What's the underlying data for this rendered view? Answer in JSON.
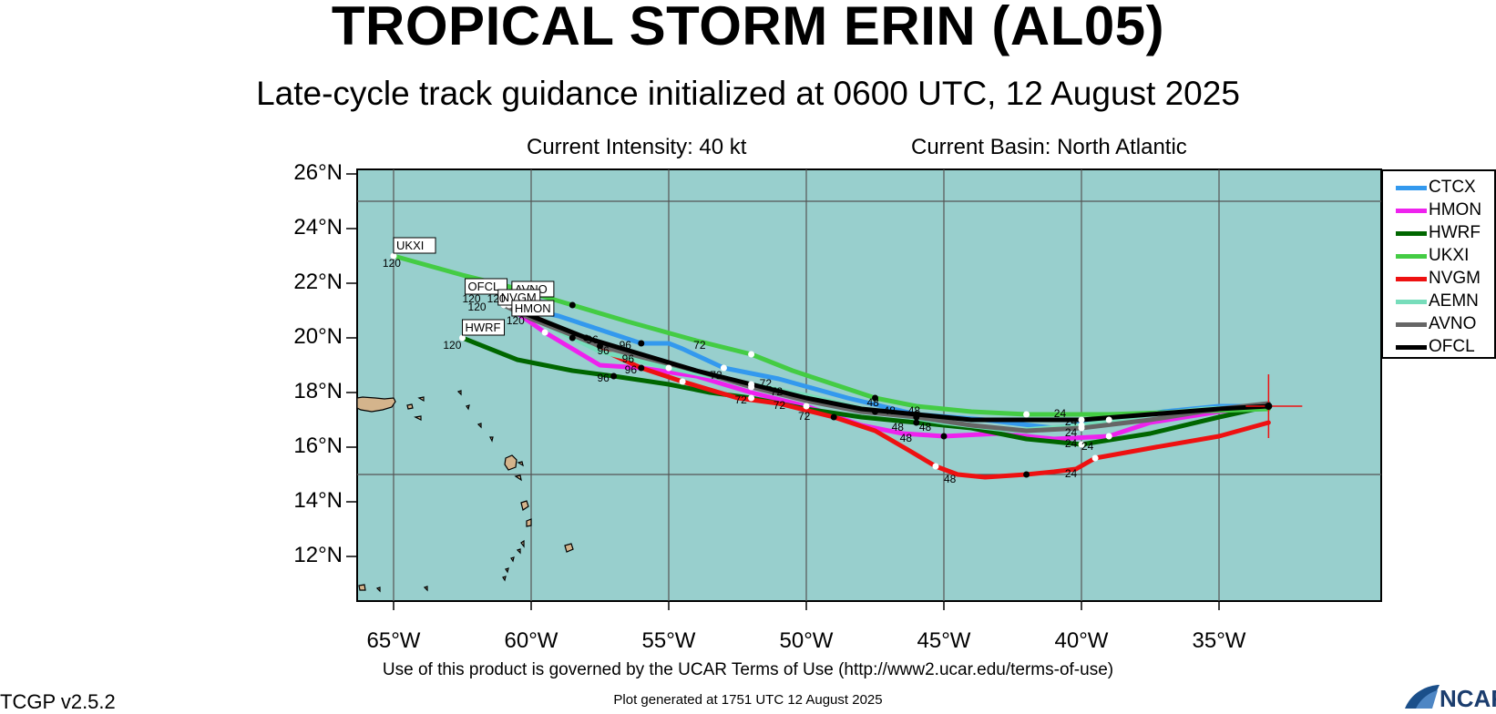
{
  "header": {
    "title": "TROPICAL STORM ERIN (AL05)",
    "subtitle": "Late-cycle track guidance initialized at 0600 UTC, 12 August 2025",
    "intensity": "Current Intensity: 40 kt",
    "basin": "Current Basin: North Atlantic"
  },
  "map": {
    "ocean_color": "#98cfcd",
    "land_color": "#d4b48c",
    "lat_labels": [
      "26°N",
      "24°N",
      "22°N",
      "20°N",
      "18°N",
      "16°N",
      "14°N",
      "12°N"
    ],
    "lon_labels": [
      "65°W",
      "60°W",
      "55°W",
      "50°W",
      "45°W",
      "40°W",
      "35°W"
    ]
  },
  "legend": [
    {
      "name": "CTCX",
      "color": "#3399ee"
    },
    {
      "name": "HMON",
      "color": "#ee22ee"
    },
    {
      "name": "HWRF",
      "color": "#006600"
    },
    {
      "name": "UKXI",
      "color": "#44cc44"
    },
    {
      "name": "NVGM",
      "color": "#ee1111"
    },
    {
      "name": "AEMN",
      "color": "#77ddbb"
    },
    {
      "name": "AVNO",
      "color": "#666666"
    },
    {
      "name": "OFCL",
      "color": "#000000"
    }
  ],
  "tracks": [
    {
      "model": "CTCX",
      "color": "#3399ee",
      "points": [
        [
          -33.2,
          17.5
        ],
        [
          -35,
          17.5
        ],
        [
          -37,
          17.3
        ],
        [
          -39,
          17.0
        ],
        [
          -41,
          16.7
        ],
        [
          -43.5,
          17.0
        ],
        [
          -46,
          17.2
        ],
        [
          -48.5,
          17.8
        ],
        [
          -51,
          18.5
        ],
        [
          -53,
          18.9
        ],
        [
          -54.5,
          19.6
        ],
        [
          -55,
          19.8
        ],
        [
          -56,
          19.8
        ],
        [
          -57.5,
          20.3
        ],
        [
          -59,
          20.8
        ],
        [
          -60.8,
          21.2
        ]
      ]
    },
    {
      "model": "HMON",
      "color": "#ee22ee",
      "points": [
        [
          -33.2,
          17.5
        ],
        [
          -35,
          17.3
        ],
        [
          -37.5,
          16.9
        ],
        [
          -39,
          16.4
        ],
        [
          -41,
          16.3
        ],
        [
          -43,
          16.5
        ],
        [
          -45,
          16.4
        ],
        [
          -46.5,
          16.5
        ],
        [
          -48,
          16.8
        ],
        [
          -50,
          17.5
        ],
        [
          -52,
          18.0
        ],
        [
          -54,
          18.6
        ],
        [
          -56,
          18.9
        ],
        [
          -57.5,
          19.0
        ],
        [
          -58.5,
          19.6
        ],
        [
          -59.5,
          20.2
        ],
        [
          -60.5,
          20.9
        ]
      ]
    },
    {
      "model": "HWRF",
      "color": "#006600",
      "points": [
        [
          -33.2,
          17.5
        ],
        [
          -35,
          17.1
        ],
        [
          -37.5,
          16.5
        ],
        [
          -40,
          16.1
        ],
        [
          -42,
          16.3
        ],
        [
          -44,
          16.7
        ],
        [
          -46,
          16.9
        ],
        [
          -48,
          17.1
        ],
        [
          -50,
          17.4
        ],
        [
          -52,
          17.8
        ],
        [
          -53.5,
          18.0
        ],
        [
          -55,
          18.3
        ],
        [
          -57,
          18.6
        ],
        [
          -58.5,
          18.8
        ],
        [
          -60.5,
          19.2
        ],
        [
          -62.5,
          20.0
        ]
      ]
    },
    {
      "model": "UKXI",
      "color": "#44cc44",
      "points": [
        [
          -33.2,
          17.4
        ],
        [
          -36,
          17.3
        ],
        [
          -39,
          17.2
        ],
        [
          -42,
          17.2
        ],
        [
          -44,
          17.3
        ],
        [
          -46,
          17.5
        ],
        [
          -47.5,
          17.8
        ],
        [
          -49,
          18.3
        ],
        [
          -50.5,
          18.8
        ],
        [
          -52,
          19.4
        ],
        [
          -54,
          19.9
        ],
        [
          -56.5,
          20.6
        ],
        [
          -58.5,
          21.2
        ],
        [
          -60.5,
          21.8
        ],
        [
          -62.5,
          22.3
        ],
        [
          -65,
          23.0
        ]
      ]
    },
    {
      "model": "NVGM",
      "color": "#ee1111",
      "points": [
        [
          -33.2,
          16.9
        ],
        [
          -35,
          16.4
        ],
        [
          -37.3,
          16.0
        ],
        [
          -39.5,
          15.6
        ],
        [
          -40.2,
          15.2
        ],
        [
          -41,
          15.1
        ],
        [
          -42,
          15.0
        ],
        [
          -43.5,
          14.9
        ],
        [
          -44.5,
          15.0
        ],
        [
          -45.3,
          15.3
        ],
        [
          -46.3,
          15.9
        ],
        [
          -47.5,
          16.6
        ],
        [
          -49,
          17.1
        ],
        [
          -51,
          17.6
        ],
        [
          -52.5,
          17.8
        ],
        [
          -54.5,
          18.4
        ],
        [
          -56,
          18.9
        ],
        [
          -57.3,
          19.5
        ],
        [
          -58.5,
          20.0
        ],
        [
          -59.5,
          20.6
        ],
        [
          -60.5,
          21.0
        ]
      ]
    },
    {
      "model": "AEMN",
      "color": "#77ddbb",
      "points": [
        [
          -33.2,
          17.5
        ],
        [
          -35.5,
          17.4
        ],
        [
          -37.5,
          17.2
        ],
        [
          -40,
          16.8
        ],
        [
          -42.5,
          16.6
        ],
        [
          -45,
          16.9
        ],
        [
          -47.5,
          17.3
        ],
        [
          -50,
          17.9
        ],
        [
          -52.5,
          18.4
        ],
        [
          -55,
          18.9
        ],
        [
          -57.5,
          19.5
        ],
        [
          -59.5,
          20.5
        ],
        [
          -61,
          21.2
        ]
      ]
    },
    {
      "model": "AVNO",
      "color": "#666666",
      "points": [
        [
          -33.2,
          17.6
        ],
        [
          -35,
          17.4
        ],
        [
          -37.5,
          17.0
        ],
        [
          -40,
          16.7
        ],
        [
          -42,
          16.6
        ],
        [
          -44,
          16.8
        ],
        [
          -46,
          17.1
        ],
        [
          -48,
          17.3
        ],
        [
          -50,
          17.7
        ],
        [
          -52,
          18.2
        ],
        [
          -54,
          18.8
        ],
        [
          -56,
          19.3
        ],
        [
          -57.5,
          19.7
        ],
        [
          -58.5,
          20.1
        ],
        [
          -60,
          20.7
        ],
        [
          -61,
          21.2
        ]
      ]
    },
    {
      "model": "OFCL",
      "color": "#000000",
      "points": [
        [
          -33.2,
          17.5
        ],
        [
          -35,
          17.4
        ],
        [
          -37.5,
          17.2
        ],
        [
          -40,
          17.0
        ],
        [
          -42,
          17.0
        ],
        [
          -44,
          17.0
        ],
        [
          -46,
          17.2
        ],
        [
          -48,
          17.4
        ],
        [
          -50,
          17.8
        ],
        [
          -52,
          18.3
        ],
        [
          -54,
          18.8
        ],
        [
          -56,
          19.4
        ],
        [
          -58,
          20.0
        ],
        [
          -59.5,
          20.6
        ],
        [
          -60.5,
          21.0
        ]
      ]
    }
  ],
  "track_labels": [
    {
      "text": "UKXI",
      "lon": -64.9,
      "lat": 23.2
    },
    {
      "text": "OFCL",
      "lon": -62.3,
      "lat": 21.7
    },
    {
      "text": "AVNO",
      "lon": -60.6,
      "lat": 21.6
    },
    {
      "text": "NVGM",
      "lon": -61.1,
      "lat": 21.3
    },
    {
      "text": "HMON",
      "lon": -60.6,
      "lat": 20.9
    },
    {
      "text": "HWRF",
      "lon": -62.4,
      "lat": 20.2
    }
  ],
  "hour_labels": [
    {
      "text": "120",
      "lon": -65.4,
      "lat": 22.6
    },
    {
      "text": "120",
      "lon": -62.5,
      "lat": 21.3
    },
    {
      "text": "120",
      "lon": -61.6,
      "lat": 21.3
    },
    {
      "text": "120",
      "lon": -62.3,
      "lat": 21.0
    },
    {
      "text": "120",
      "lon": -60.9,
      "lat": 20.5
    },
    {
      "text": "120",
      "lon": -63.2,
      "lat": 19.6
    },
    {
      "text": "96",
      "lon": -58.0,
      "lat": 19.8
    },
    {
      "text": "96",
      "lon": -56.8,
      "lat": 19.6
    },
    {
      "text": "96",
      "lon": -57.6,
      "lat": 19.4
    },
    {
      "text": "96",
      "lon": -56.7,
      "lat": 19.1
    },
    {
      "text": "96",
      "lon": -56.6,
      "lat": 18.7
    },
    {
      "text": "96",
      "lon": -57.6,
      "lat": 18.4
    },
    {
      "text": "72",
      "lon": -54.1,
      "lat": 19.6
    },
    {
      "text": "72",
      "lon": -53.5,
      "lat": 18.5
    },
    {
      "text": "72",
      "lon": -51.7,
      "lat": 18.2
    },
    {
      "text": "72",
      "lon": -51.3,
      "lat": 17.9
    },
    {
      "text": "72",
      "lon": -52.6,
      "lat": 17.6
    },
    {
      "text": "72",
      "lon": -51.2,
      "lat": 17.4
    },
    {
      "text": "72",
      "lon": -50.3,
      "lat": 17.0
    },
    {
      "text": "48",
      "lon": -47.8,
      "lat": 17.5
    },
    {
      "text": "48",
      "lon": -47.2,
      "lat": 17.2
    },
    {
      "text": "48",
      "lon": -46.3,
      "lat": 17.2
    },
    {
      "text": "48",
      "lon": -46.9,
      "lat": 16.6
    },
    {
      "text": "48",
      "lon": -46.6,
      "lat": 16.2
    },
    {
      "text": "48",
      "lon": -45.9,
      "lat": 16.6
    },
    {
      "text": "48",
      "lon": -45.0,
      "lat": 14.7
    },
    {
      "text": "24",
      "lon": -41.0,
      "lat": 17.1
    },
    {
      "text": "24",
      "lon": -40.6,
      "lat": 16.8
    },
    {
      "text": "24",
      "lon": -40.6,
      "lat": 16.4
    },
    {
      "text": "24",
      "lon": -40.6,
      "lat": 16.0
    },
    {
      "text": "24",
      "lon": -40.0,
      "lat": 15.9
    },
    {
      "text": "24",
      "lon": -40.6,
      "lat": 14.9
    }
  ],
  "footer": {
    "terms": "Use of this product is governed by the UCAR Terms of Use (http://www2.ucar.edu/terms-of-use)",
    "version": "TCGP v2.5.2",
    "generated": "Plot generated at 1751 UTC   12 August 2025",
    "logo_text": "NCAR"
  }
}
